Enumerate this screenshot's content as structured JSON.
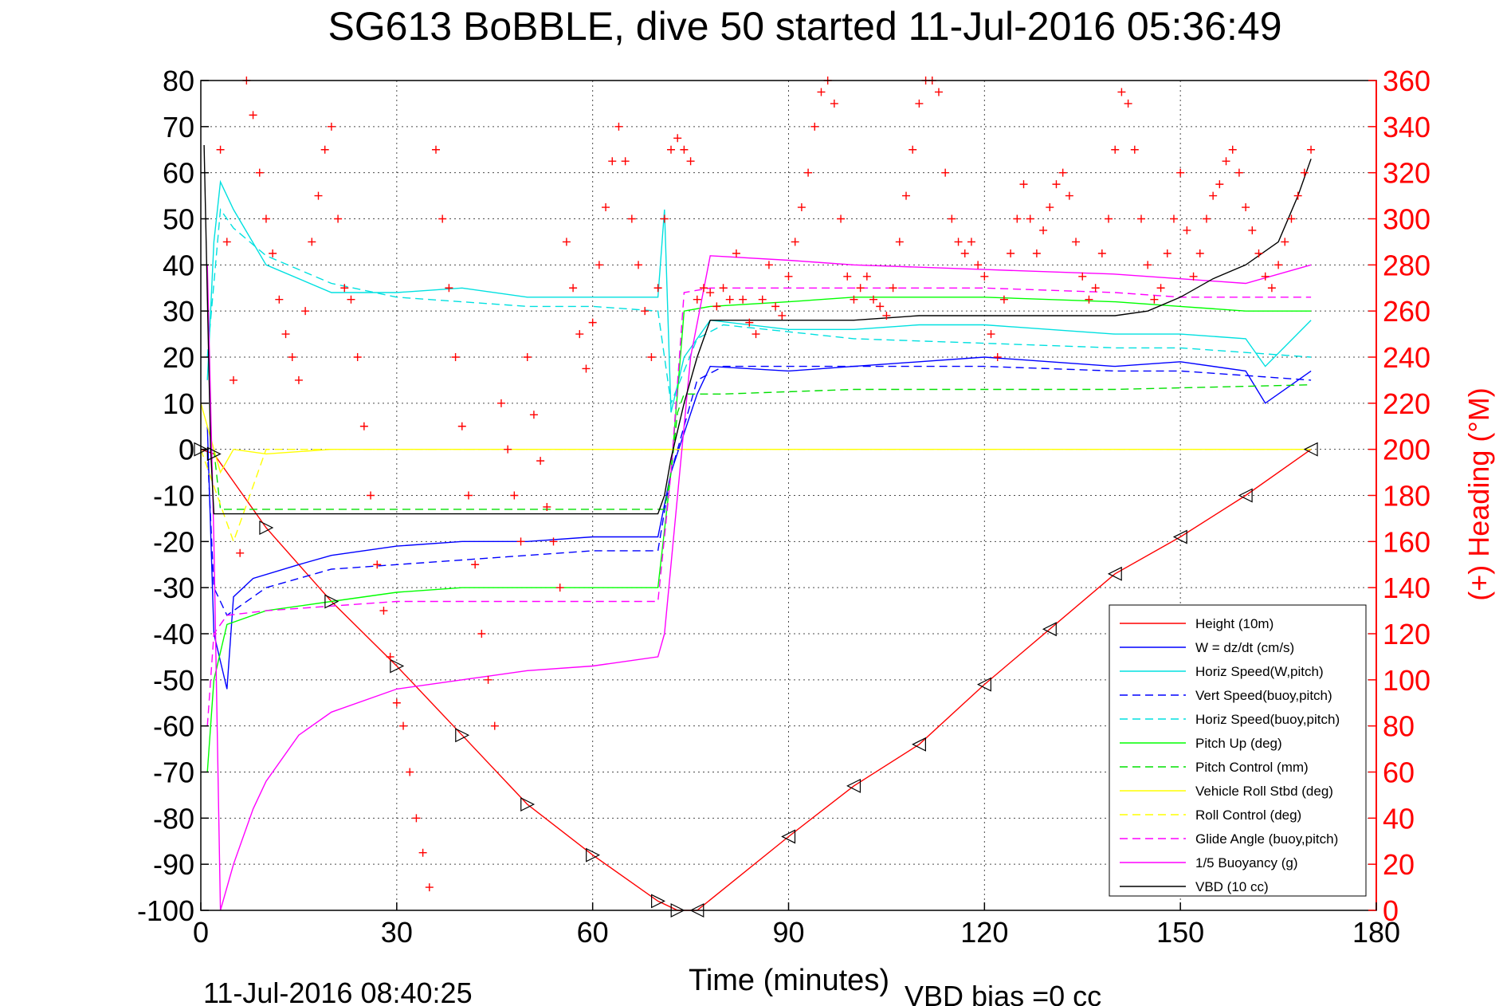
{
  "chart_data": {
    "type": "line",
    "title": "SG613 BoBBLE, dive 50 started 11-Jul-2016 05:36:49",
    "xlabel": "Time (minutes)",
    "ylabel_right": "(+) Heading (°M)",
    "footer_left": "11-Jul-2016 08:40:25",
    "footer_right": "VBD bias =0 cc",
    "xlim": [
      0,
      180
    ],
    "ylim": [
      -100,
      80
    ],
    "y2lim": [
      0,
      360
    ],
    "xticks": [
      0,
      30,
      60,
      90,
      120,
      150,
      180
    ],
    "yticks": [
      80,
      70,
      60,
      50,
      40,
      30,
      20,
      10,
      0,
      -10,
      -20,
      -30,
      -40,
      -50,
      -60,
      -70,
      -80,
      -90,
      -100
    ],
    "y2ticks": [
      360,
      340,
      320,
      300,
      280,
      260,
      240,
      220,
      200,
      180,
      160,
      140,
      120,
      100,
      80,
      60,
      40,
      20,
      0
    ],
    "grid": true,
    "legend_position": "bottom-right",
    "colors": {
      "height": "#ff0000",
      "w": "#0000ff",
      "horiz_speed": "#00e0e0",
      "vert_speed": "#0000ff",
      "horiz_speed_buoy": "#00e0e0",
      "pitch_up": "#00ff00",
      "pitch_control": "#00e000",
      "roll": "#ffff00",
      "roll_control": "#ffff00",
      "glide_angle": "#ff00ff",
      "buoyancy": "#ff00ff",
      "vbd": "#000000",
      "heading": "#ff0000"
    },
    "series": [
      {
        "name": "Height (10m)",
        "style": "solid",
        "color_key": "height",
        "x": [
          0,
          2,
          10,
          20,
          30,
          40,
          50,
          60,
          70,
          73,
          76,
          90,
          100,
          110,
          120,
          130,
          140,
          150,
          160,
          170
        ],
        "y": [
          0,
          -1,
          -17,
          -33,
          -47,
          -62,
          -77,
          -88,
          -98,
          -100,
          -100,
          -84,
          -73,
          -64,
          -51,
          -39,
          -27,
          -19,
          -10,
          0
        ]
      },
      {
        "name": "W = dz/dt (cm/s)",
        "style": "solid",
        "color_key": "w",
        "x": [
          1,
          2,
          4,
          5,
          8,
          15,
          20,
          30,
          40,
          50,
          60,
          70,
          72,
          76,
          78,
          90,
          100,
          110,
          120,
          130,
          140,
          150,
          160,
          163,
          170
        ],
        "y": [
          5,
          -40,
          -52,
          -32,
          -28,
          -25,
          -23,
          -21,
          -20,
          -20,
          -19,
          -19,
          -5,
          12,
          18,
          17,
          18,
          19,
          20,
          19,
          18,
          19,
          17,
          10,
          17
        ]
      },
      {
        "name": "Horiz Speed(W,pitch)",
        "style": "solid",
        "color_key": "horiz_speed",
        "x": [
          1,
          2,
          3,
          5,
          10,
          20,
          30,
          40,
          50,
          60,
          70,
          71,
          72,
          74,
          78,
          90,
          100,
          110,
          120,
          130,
          140,
          150,
          160,
          163,
          170
        ],
        "y": [
          15,
          45,
          58,
          52,
          40,
          34,
          34,
          35,
          33,
          33,
          33,
          52,
          8,
          20,
          28,
          26,
          26,
          27,
          27,
          26,
          25,
          25,
          24,
          18,
          28
        ]
      },
      {
        "name": "Vert Speed(buoy,pitch)",
        "style": "dashed",
        "color_key": "vert_speed",
        "x": [
          1,
          2,
          4,
          10,
          20,
          30,
          40,
          50,
          60,
          70,
          72,
          76,
          80,
          100,
          120,
          140,
          150,
          160,
          170
        ],
        "y": [
          0,
          -30,
          -36,
          -30,
          -26,
          -25,
          -24,
          -23,
          -22,
          -22,
          -5,
          15,
          18,
          18,
          18,
          17,
          17,
          16,
          15
        ]
      },
      {
        "name": "Horiz Speed(buoy,pitch)",
        "style": "dashed",
        "color_key": "horiz_speed_buoy",
        "x": [
          1,
          3,
          5,
          10,
          20,
          30,
          40,
          50,
          60,
          70,
          72,
          76,
          80,
          100,
          120,
          140,
          150,
          160,
          170
        ],
        "y": [
          20,
          52,
          48,
          42,
          36,
          33,
          32,
          31,
          31,
          30,
          10,
          24,
          27,
          24,
          23,
          22,
          22,
          21,
          20
        ]
      },
      {
        "name": "Pitch Up (deg)",
        "style": "solid",
        "color_key": "pitch_up",
        "x": [
          1,
          2,
          4,
          10,
          20,
          30,
          40,
          50,
          60,
          70,
          72,
          74,
          78,
          90,
          100,
          120,
          140,
          150,
          160,
          170
        ],
        "y": [
          -70,
          -50,
          -38,
          -35,
          -33,
          -31,
          -30,
          -30,
          -30,
          -30,
          -5,
          30,
          31,
          32,
          33,
          33,
          32,
          31,
          30,
          30
        ]
      },
      {
        "name": "Pitch Control (mm)",
        "style": "dashed",
        "color_key": "pitch_control",
        "x": [
          2,
          3,
          70,
          71,
          72,
          73,
          74,
          80,
          100,
          120,
          140,
          170
        ],
        "y": [
          0,
          -13,
          -13,
          -13,
          -5,
          8,
          12,
          12,
          13,
          13,
          13,
          14
        ]
      },
      {
        "name": "Vehicle Roll Stbd (deg)",
        "style": "solid",
        "color_key": "roll",
        "x": [
          0,
          3,
          5,
          10,
          20,
          30,
          40,
          50,
          60,
          70,
          75,
          80,
          90,
          100,
          110,
          120,
          130,
          140,
          150,
          160,
          170
        ],
        "y": [
          10,
          -5,
          0,
          -1,
          0,
          0,
          0,
          0,
          0,
          0,
          0,
          0,
          0,
          0,
          0,
          0,
          0,
          0,
          0,
          0,
          0
        ]
      },
      {
        "name": "Roll Control (deg)",
        "style": "dashed",
        "color_key": "roll_control",
        "x": [
          0,
          5,
          10,
          20,
          30,
          40,
          50,
          60,
          70,
          75,
          80,
          100,
          120,
          140,
          160,
          170
        ],
        "y": [
          0,
          -20,
          0,
          0,
          0,
          0,
          0,
          0,
          0,
          0,
          0,
          0,
          0,
          0,
          0,
          0
        ]
      },
      {
        "name": "Glide Angle (buoy,pitch)",
        "style": "dashed",
        "color_key": "glide_angle",
        "x": [
          1,
          2,
          4,
          10,
          20,
          30,
          40,
          50,
          60,
          70,
          72,
          74,
          78,
          90,
          100,
          120,
          140,
          150,
          160,
          170
        ],
        "y": [
          -60,
          -40,
          -36,
          -35,
          -34,
          -33,
          -33,
          -33,
          -33,
          -33,
          -5,
          34,
          35,
          35,
          35,
          35,
          34,
          33,
          33,
          33
        ]
      },
      {
        "name": "1/5 Buoyancy (g)",
        "style": "solid",
        "color_key": "buoyancy",
        "x": [
          1,
          2,
          3,
          5,
          8,
          10,
          15,
          20,
          30,
          40,
          50,
          60,
          70,
          71,
          73,
          75,
          78,
          90,
          100,
          120,
          140,
          150,
          160,
          170
        ],
        "y": [
          40,
          -20,
          -100,
          -90,
          -78,
          -72,
          -62,
          -57,
          -52,
          -50,
          -48,
          -47,
          -45,
          -40,
          -10,
          20,
          42,
          41,
          40,
          39,
          38,
          37,
          36,
          40
        ]
      },
      {
        "name": "VBD (10 cc)",
        "style": "solid",
        "color_key": "vbd",
        "x": [
          0.5,
          1.5,
          2,
          3,
          10,
          20,
          30,
          40,
          50,
          60,
          70,
          71,
          72,
          74,
          76,
          78,
          90,
          100,
          110,
          120,
          130,
          140,
          145,
          150,
          155,
          160,
          165,
          168,
          170
        ],
        "y": [
          66,
          0,
          -14,
          -14,
          -14,
          -14,
          -14,
          -14,
          -14,
          -14,
          -14,
          -10,
          -2,
          10,
          20,
          28,
          28,
          28,
          29,
          29,
          29,
          29,
          30,
          33,
          37,
          40,
          45,
          55,
          63
        ]
      }
    ],
    "heading_series": {
      "name": "(+) Heading",
      "axis": "right",
      "x": [
        3,
        4,
        5,
        6,
        7,
        8,
        9,
        10,
        11,
        12,
        13,
        14,
        15,
        16,
        17,
        18,
        19,
        20,
        21,
        22,
        23,
        24,
        25,
        26,
        27,
        28,
        29,
        30,
        31,
        32,
        33,
        34,
        35,
        36,
        37,
        38,
        39,
        40,
        41,
        42,
        43,
        44,
        45,
        46,
        47,
        48,
        49,
        50,
        51,
        52,
        53,
        54,
        55,
        56,
        57,
        58,
        59,
        60,
        61,
        62,
        63,
        64,
        65,
        66,
        67,
        68,
        69,
        70,
        71,
        72,
        73,
        74,
        75,
        76,
        77,
        78,
        79,
        80,
        81,
        82,
        83,
        84,
        85,
        86,
        87,
        88,
        89,
        90,
        91,
        92,
        93,
        94,
        95,
        96,
        97,
        98,
        99,
        100,
        101,
        102,
        103,
        104,
        105,
        106,
        107,
        108,
        109,
        110,
        111,
        112,
        113,
        114,
        115,
        116,
        117,
        118,
        119,
        120,
        121,
        122,
        123,
        124,
        125,
        126,
        127,
        128,
        129,
        130,
        131,
        132,
        133,
        134,
        135,
        136,
        137,
        138,
        139,
        140,
        141,
        142,
        143,
        144,
        145,
        146,
        147,
        148,
        149,
        150,
        151,
        152,
        153,
        154,
        155,
        156,
        157,
        158,
        159,
        160,
        161,
        162,
        163,
        164,
        165,
        166,
        167,
        168,
        169,
        170
      ],
      "y": [
        330,
        290,
        230,
        155,
        360,
        345,
        320,
        300,
        285,
        265,
        250,
        240,
        230,
        260,
        290,
        310,
        330,
        340,
        300,
        270,
        265,
        240,
        210,
        180,
        150,
        130,
        110,
        90,
        80,
        60,
        40,
        25,
        10,
        330,
        300,
        270,
        240,
        210,
        180,
        150,
        120,
        100,
        80,
        220,
        200,
        180,
        160,
        240,
        215,
        195,
        175,
        160,
        140,
        290,
        270,
        250,
        235,
        255,
        280,
        305,
        325,
        340,
        325,
        300,
        280,
        260,
        240,
        270,
        300,
        330,
        335,
        330,
        325,
        265,
        270,
        268,
        262,
        270,
        265,
        285,
        265,
        255,
        250,
        265,
        280,
        262,
        258,
        275,
        290,
        305,
        320,
        340,
        355,
        360,
        350,
        300,
        275,
        265,
        270,
        275,
        265,
        262,
        258,
        270,
        290,
        310,
        330,
        350,
        360,
        360,
        355,
        320,
        300,
        290,
        285,
        290,
        280,
        275,
        250,
        240,
        265,
        285,
        300,
        315,
        300,
        285,
        295,
        305,
        315,
        320,
        310,
        290,
        275,
        265,
        270,
        285,
        300,
        330,
        355,
        350,
        330,
        300,
        280,
        265,
        270,
        285,
        300,
        320,
        295,
        275,
        285,
        300,
        310,
        315,
        325,
        330,
        320,
        305,
        295,
        285,
        275,
        270,
        280,
        290,
        300,
        310,
        320,
        330
      ]
    }
  }
}
